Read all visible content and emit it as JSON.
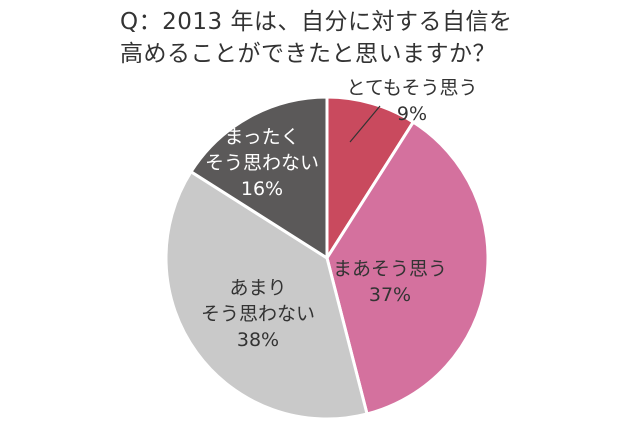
{
  "chart_data": {
    "type": "pie",
    "title": "Q：2013 年は、自分に対する自信を\n高めることができたと思いますか？",
    "categories": [
      "とてもそう思う",
      "まあそう思う",
      "あまり\nそう思わない",
      "まったく\nそう思わない"
    ],
    "values": [
      9,
      37,
      38,
      16
    ],
    "value_labels": [
      "9%",
      "37%",
      "38%",
      "16%"
    ],
    "colors": [
      "#c94a5e",
      "#d4719e",
      "#c9c9c9",
      "#5b5959"
    ]
  }
}
